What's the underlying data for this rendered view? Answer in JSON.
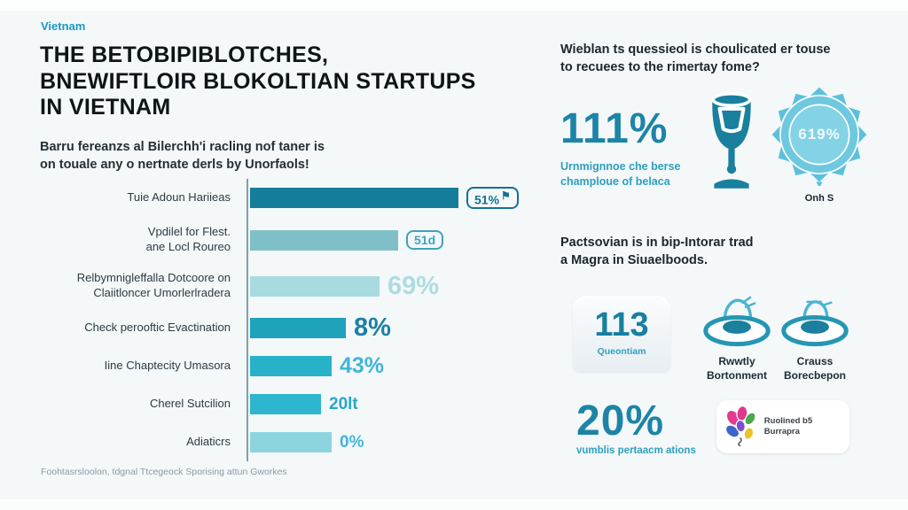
{
  "page": {
    "tag": "Vietnam",
    "title_lines": [
      "THE BETOBIPIBLOTCHES,",
      "BNEWIFTLOIR BLOKOLTIAN STARTUPS",
      "IN VIETNAM"
    ],
    "subtitle_lines": [
      "Barru fereanzs al Bilerchh'i racling nof taner is",
      "on touale any o nertnate derls by Unorfaols!"
    ],
    "footer": "Foohtasrsloolon, tdgnal Ttcegeock Sporising attun Gworkes"
  },
  "chart_data": {
    "type": "bar",
    "orientation": "horizontal",
    "title": "",
    "xlabel": "",
    "ylabel": "",
    "categories": [
      [
        "Tuie Adoun Hariieas"
      ],
      [
        "Vpdilel for Flest.",
        "ane Locl Roureo"
      ],
      [
        "Relbymnigleffalla Dotcoore on",
        "Claiitloncer Umorlerlradera"
      ],
      [
        "Check perooftic Evactination"
      ],
      [
        "Iine Chaptecity Umasora"
      ],
      [
        "Cherel Sutcilion"
      ],
      [
        "Adiaticrs"
      ]
    ],
    "values": [
      51,
      51,
      69,
      8,
      43,
      20,
      0
    ],
    "value_labels": [
      "51%",
      "51d",
      "69%",
      "8%",
      "43%",
      "20lt",
      "0%"
    ],
    "value_suffixes": [
      "⚑",
      "",
      "",
      "",
      "",
      "",
      ""
    ],
    "bar_length_pct": [
      100,
      71,
      62,
      46,
      39,
      34,
      39
    ],
    "bar_colors": [
      "#147d9c",
      "#7fc0c8",
      "#a7dbe0",
      "#1ea3bb",
      "#27b2ca",
      "#2db6ce",
      "#8dd5de"
    ],
    "value_colors": [
      "#15718f",
      "#3fa3bd",
      "#aedbe3",
      "#1b80a4",
      "#41b5da",
      "#28a6c9",
      "#41b5da"
    ],
    "value_styles": [
      "badge",
      "badge",
      "big",
      "big",
      "mid",
      "sm",
      "sm"
    ]
  },
  "right": {
    "question_lines": [
      "Wieblan ts quessieol is choulicated er touse",
      "to recuees to the rimertay fome?"
    ],
    "stat1": {
      "value": "111%",
      "caption_lines": [
        "Urnmignnoe che berse",
        "champloue of belaca"
      ]
    },
    "sun_badge": {
      "value": "619%",
      "caption": "Onh S"
    },
    "section2_lines": [
      "Pactsovian is in bip-Intorar trad",
      "a Magra in Siuaelboods."
    ],
    "stat2": {
      "value": "113",
      "caption": "Queontiam"
    },
    "hat1_caption_lines": [
      "Rwwtly",
      "Bortonment"
    ],
    "hat2_caption_lines": [
      "Crauss",
      "Borecbepon"
    ],
    "stat3": {
      "value": "20%",
      "caption": "vumblis pertaacm ations"
    },
    "logo_card": {
      "label": "Ruolined b5 Burrapra"
    }
  },
  "colors": {
    "accent_teal": "#1d84a7",
    "accent_cyan": "#35b4d4",
    "tag_blue": "#1a9abf",
    "background": "#f4f8f9"
  }
}
